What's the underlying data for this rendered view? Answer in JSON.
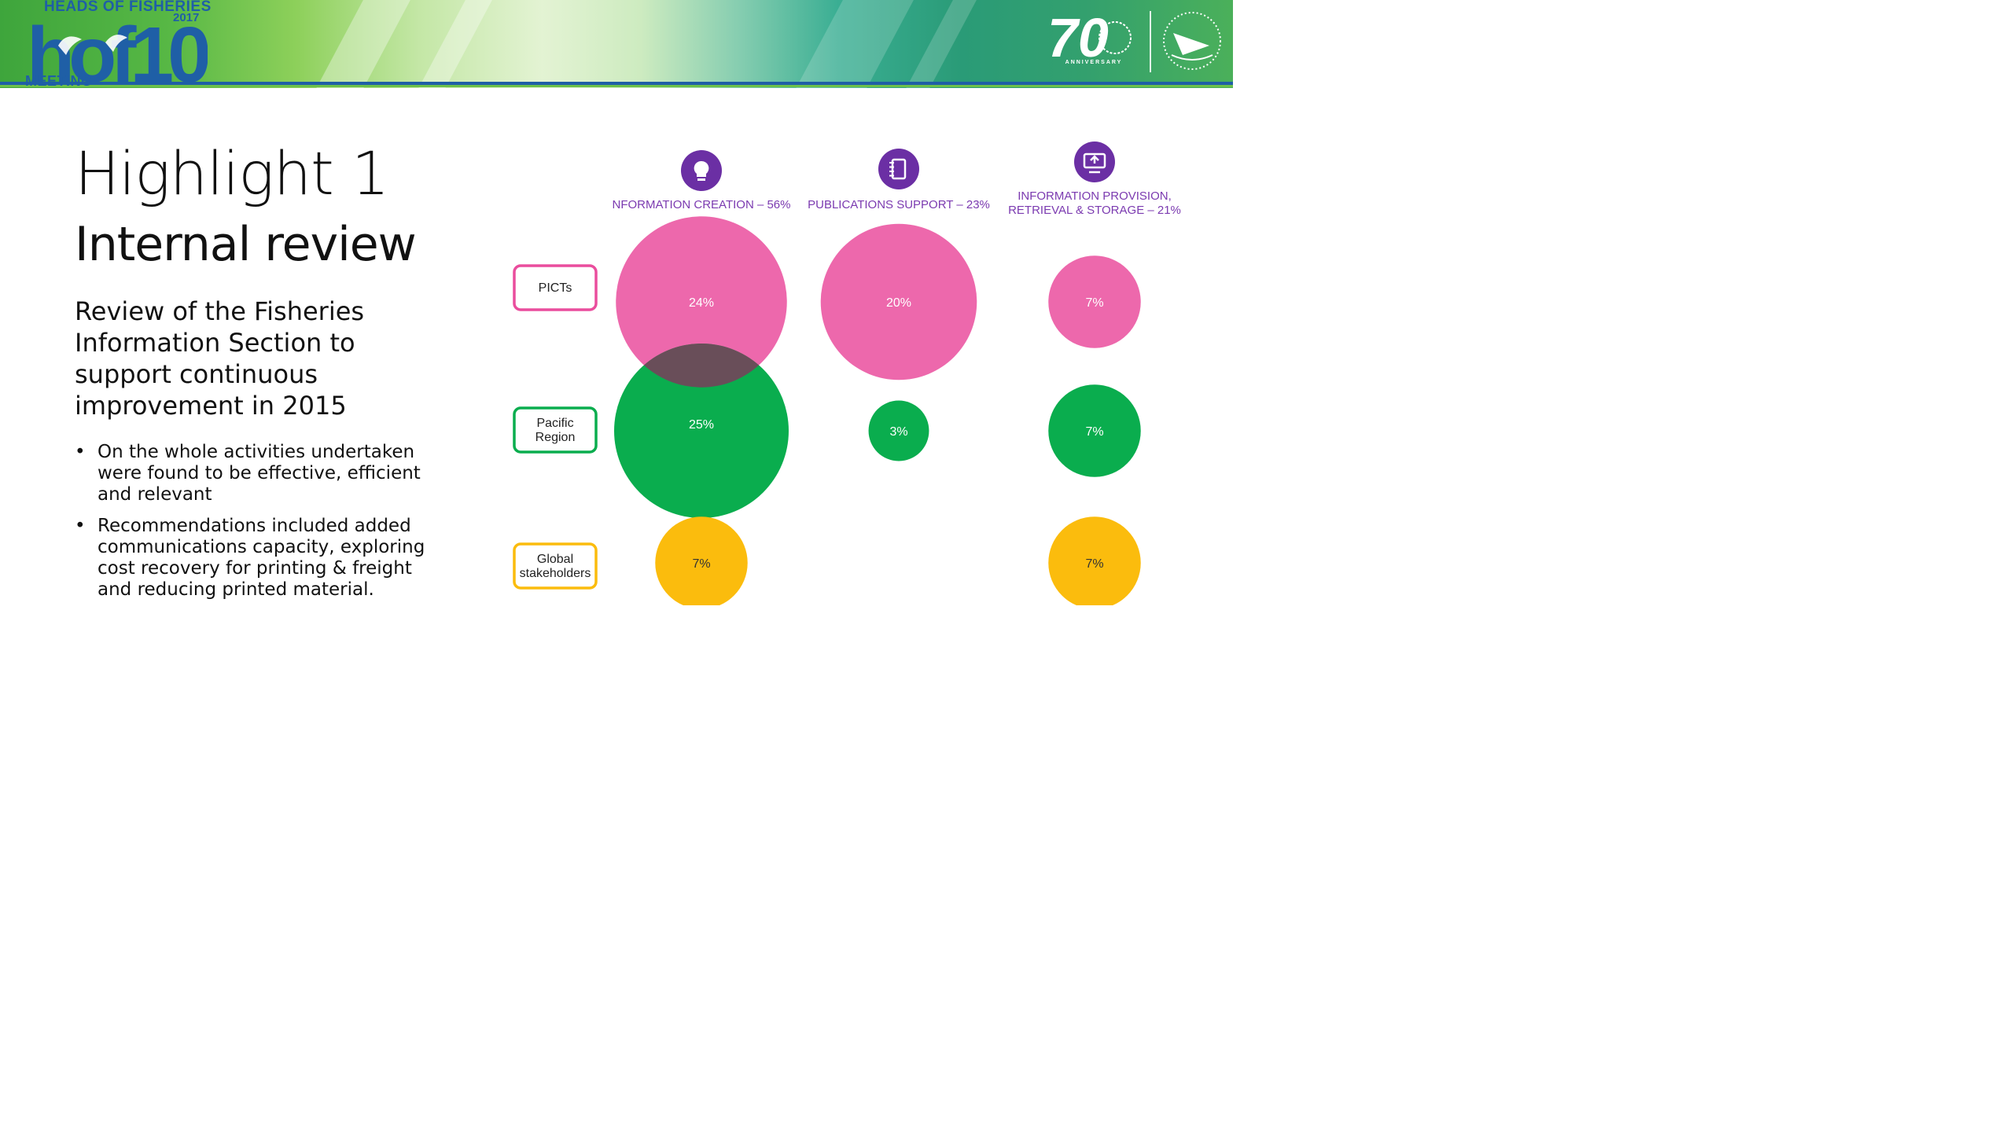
{
  "header": {
    "event_line1": "HEADS OF FISHERIES",
    "event_year": "2017",
    "event_logo_text": "hof10",
    "event_line2": "MEETING",
    "anniversary_number": "70",
    "anniversary_text": "ANNIVERSARY",
    "colors": {
      "banner_green": "#4bb05a",
      "brand_blue": "#1f5fa6"
    }
  },
  "slide": {
    "title": "Highlight 1",
    "subtitle": "Internal review",
    "description": "Review of the Fisheries Information Section to support continuous improvement in 2015",
    "bullets": [
      "On the whole activities undertaken were found to be effective, efficient and relevant",
      "Recommendations included added communications capacity, exploring cost recovery for printing & freight and reducing printed material."
    ],
    "bullet_symbol": "•"
  },
  "chart_data": {
    "type": "bubble-matrix",
    "columns": [
      {
        "label": "NFORMATION CREATION – 56%",
        "icon": "lightbulb-icon"
      },
      {
        "label": "PUBLICATIONS SUPPORT – 23%",
        "icon": "notebook-icon"
      },
      {
        "label_lines": [
          "INFORMATION PROVISION,",
          "RETRIEVAL & STORAGE – 21%"
        ],
        "icon": "monitor-upload-icon"
      }
    ],
    "rows": [
      {
        "label_lines": [
          "PICTs"
        ],
        "color": "#ea4d9d"
      },
      {
        "label_lines": [
          "Pacific",
          "Region"
        ],
        "color": "#0aad4e"
      },
      {
        "label_lines": [
          "Global",
          "stakeholders"
        ],
        "color": "#fbbc0d"
      }
    ],
    "values": [
      [
        24,
        20,
        7
      ],
      [
        25,
        3,
        7
      ],
      [
        7,
        null,
        7
      ]
    ],
    "value_labels": [
      [
        "24%",
        "20%",
        "7%"
      ],
      [
        "25%",
        "3%",
        "7%"
      ],
      [
        "7%",
        "",
        "7%"
      ]
    ],
    "icon_color": "#6b2fa4",
    "label_color": "#7b3ab0"
  }
}
